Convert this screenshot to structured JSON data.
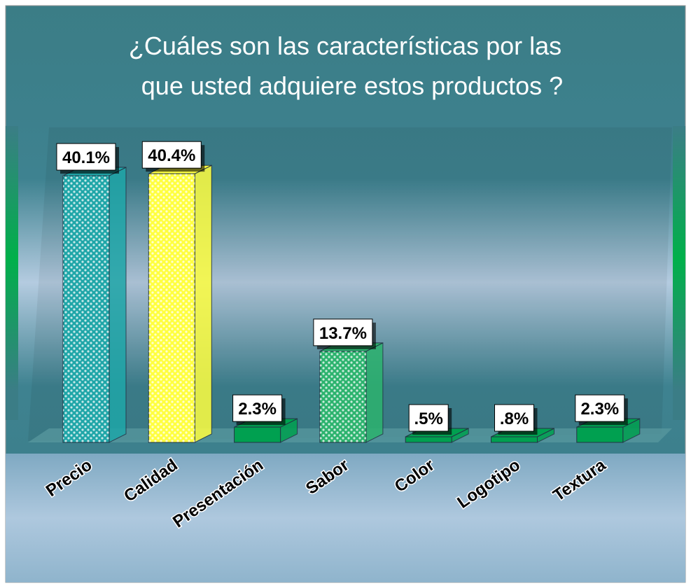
{
  "chart_data": {
    "type": "bar",
    "title": [
      "¿Cuáles son las características por las",
      "que usted adquiere estos productos ?"
    ],
    "categories": [
      "Precio",
      "Calidad",
      "Presentación",
      "Sabor",
      "Color",
      "Logotipo",
      "Textura"
    ],
    "values": [
      40.1,
      40.4,
      2.3,
      13.7,
      0.5,
      0.8,
      2.3
    ],
    "value_labels": [
      "40.1%",
      "40.4%",
      "2.3%",
      "13.7%",
      ".5%",
      ".8%",
      "2.3%"
    ],
    "colors": [
      "#1fa6a8",
      "#ffff40",
      "#00a050",
      "#2cb36e",
      "#00a050",
      "#00a050",
      "#00a050"
    ]
  }
}
